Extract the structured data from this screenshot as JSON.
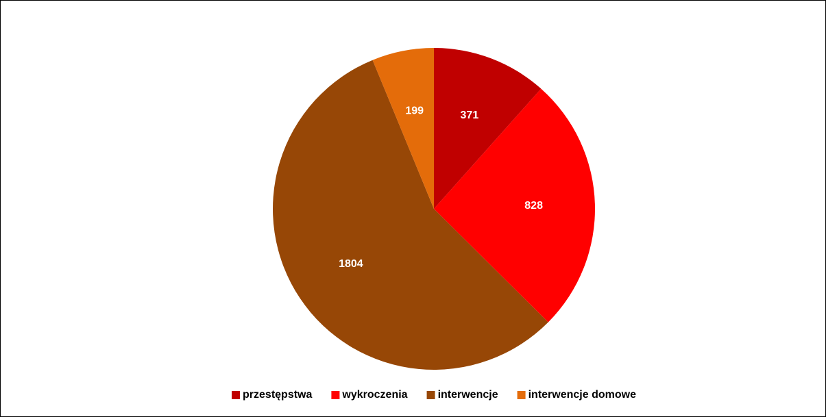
{
  "chart_data": {
    "type": "pie",
    "categories": [
      "przestępstwa",
      "wykroczenia",
      "interwencje",
      "interwencje domowe"
    ],
    "values": [
      371,
      828,
      1804,
      199
    ],
    "colors": [
      "#c00000",
      "#ff0000",
      "#974706",
      "#e46c0a"
    ],
    "legend": "bottom"
  }
}
